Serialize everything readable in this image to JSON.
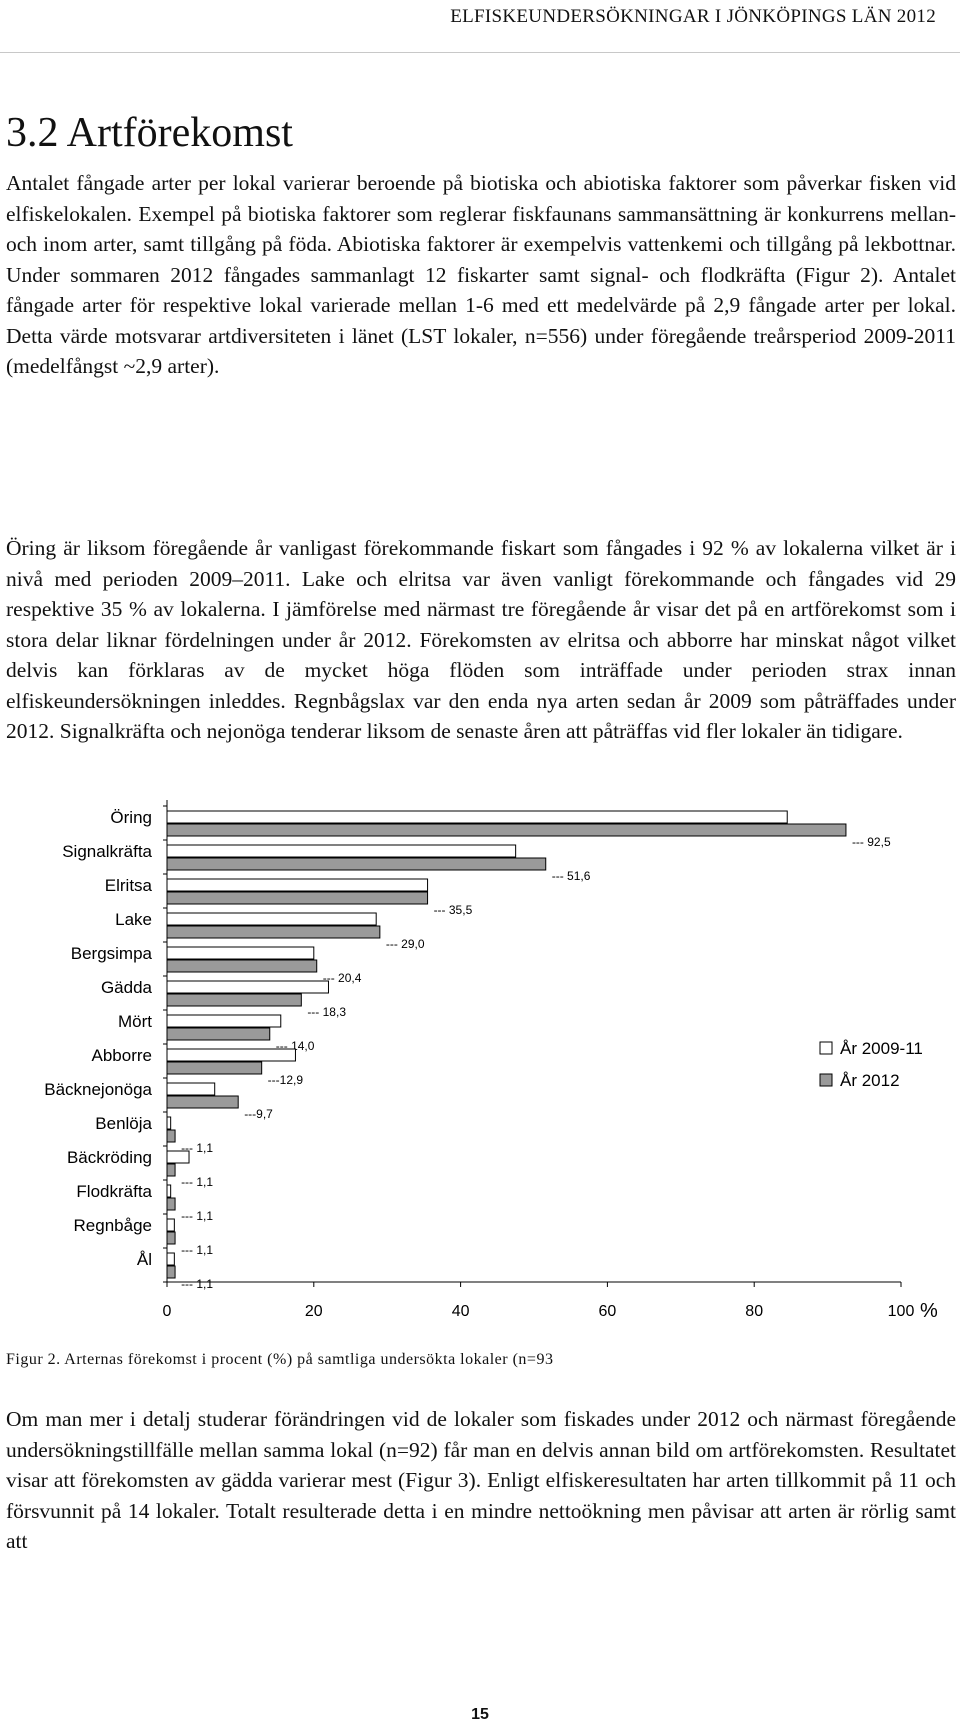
{
  "header": "ELFISKEUNDERSÖKNINGAR I JÖNKÖPINGS LÄN 2012",
  "section_title": "3.2 Artförekomst",
  "paragraphs": [
    "Antalet fångade arter per lokal varierar beroende på biotiska och abiotiska faktorer som påverkar fisken vid elfiskelokalen. Exempel på biotiska faktorer som reglerar fiskfaunans sammansättning är konkurrens mellan- och inom arter, samt tillgång på föda. Abiotiska faktorer är exempelvis vattenkemi och tillgång på lekbottnar. Under sommaren 2012 fångades sammanlagt 12 fiskarter samt signal- och flodkräfta (Figur 2). Antalet fångade arter för respektive lokal varierade mellan 1-6 med ett medelvärde på 2,9 fångade arter per lokal. Detta värde motsvarar artdiversiteten i länet (LST lokaler, n=556) under föregående treårsperiod 2009-2011 (medelfångst ~2,9 arter).",
    "Öring är liksom föregående år vanligast förekommande fiskart som fångades i 92 % av lokalerna vilket är i nivå med perioden 2009–2011. Lake och elritsa var även vanligt förekommande och fångades vid 29 respektive 35 % av lokalerna. I jämförelse med närmast tre föregående år visar det på en artförekomst som i stora delar liknar fördelningen under år 2012. Förekomsten av elritsa och abborre har minskat något vilket delvis kan förklaras av de mycket höga flöden som inträffade under perioden strax innan elfiskeundersökningen inleddes. Regnbågslax var den enda nya arten sedan år 2009 som påträffades under 2012. Signalkräfta och nejonöga tenderar liksom de senaste åren att påträffas vid fler lokaler än tidigare.",
    "Om man mer i detalj studerar förändringen vid de lokaler som fiskades under 2012 och närmast föregående undersökningstillfälle mellan samma lokal (n=92) får man en delvis annan bild om artförekomsten. Resultatet visar att förekomsten av gädda varierar mest (Figur 3). Enligt elfiskeresultaten har arten tillkommit på 11 och försvunnit på 14 lokaler. Totalt resulterade detta i en mindre nettoökning men påvisar att arten är rörlig samt att"
  ],
  "caption": "Figur 2. Arternas förekomst i procent (%) på samtliga undersökta lokaler (n=93",
  "page_number": "15",
  "chart_data": {
    "type": "bar",
    "orientation": "horizontal",
    "categories": [
      "Öring",
      "Signalkräfta",
      "Elritsa",
      "Lake",
      "Bergsimpa",
      "Gädda",
      "Mört",
      "Abborre",
      "Bäcknejonöga",
      "Benlöja",
      "Bäckröding",
      "Flodkräfta",
      "Regnbåge",
      "Ål"
    ],
    "series": [
      {
        "name": "År 2009-11",
        "values": [
          84.5,
          47.5,
          35.5,
          28.5,
          20.0,
          22.0,
          15.5,
          17.5,
          6.5,
          0.5,
          3.0,
          0.5,
          1.0,
          1.0
        ],
        "color": "#ffffff"
      },
      {
        "name": "År 2012",
        "values": [
          92.5,
          51.6,
          35.5,
          29.0,
          20.4,
          18.3,
          14.0,
          12.9,
          9.7,
          1.1,
          1.1,
          1.1,
          1.1,
          1.1
        ],
        "color": "#9a9a9a"
      }
    ],
    "value_labels": [
      "--- 92,5",
      "--- 51,6",
      "--- 35,5",
      "--- 29,0",
      "--- 20,4",
      "--- 18,3",
      "--- 14,0",
      "---12,9",
      "---9,7",
      "--- 1,1",
      "--- 1,1",
      "--- 1,1",
      "--- 1,1",
      "--- 1,1"
    ],
    "xlim": [
      0,
      100
    ],
    "xticks": [
      "0",
      "20",
      "40",
      "60",
      "80",
      "100"
    ],
    "x_unit": "%",
    "legend_position": "right",
    "grid": false
  }
}
